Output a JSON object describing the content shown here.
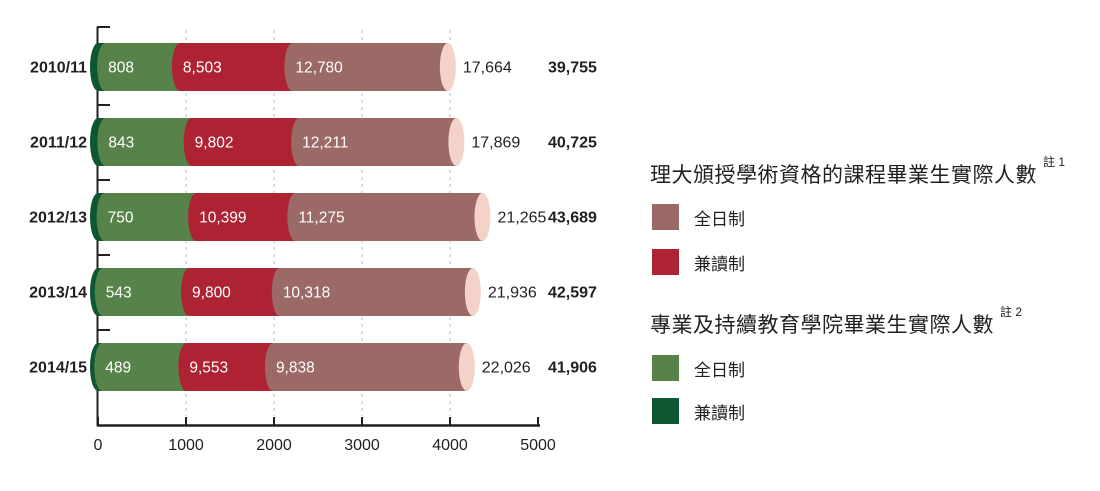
{
  "page": {
    "background": "#ffffff"
  },
  "chart_data": {
    "type": "bar",
    "orientation": "horizontal",
    "stacked": true,
    "title": "",
    "xlabel": "",
    "ylabel": "",
    "categories": [
      "2010/11",
      "2011/12",
      "2012/13",
      "2013/14",
      "2014/15"
    ],
    "series": [
      {
        "name": "專業及持續教育學院畢業生實際人數 兼讀制",
        "color": "#0d5732",
        "values": [
          808,
          843,
          750,
          543,
          489
        ],
        "labels": [
          "808",
          "843",
          "750",
          "543",
          "489"
        ]
      },
      {
        "name": "專業及持續教育學院畢業生實際人數 全日制",
        "color": "#57834a",
        "values": [
          8503,
          9802,
          10399,
          9800,
          9553
        ],
        "labels": [
          "8,503",
          "9,802",
          "10,399",
          "9,800",
          "9,553"
        ]
      },
      {
        "name": "理大頒授學術資格的課程畢業生實際人數 兼讀制",
        "color": "#ae2334",
        "values": [
          12780,
          12211,
          11275,
          10318,
          9838
        ],
        "labels": [
          "12,780",
          "12,211",
          "11,275",
          "10,318",
          "9,838"
        ]
      },
      {
        "name": "理大頒授學術資格的課程畢業生實際人數 全日制",
        "color": "#9b6a66",
        "values": [
          17664,
          17869,
          21265,
          21936,
          22026
        ],
        "labels": [
          "17,664",
          "17,869",
          "21,265",
          "21,936",
          "22,026"
        ]
      }
    ],
    "totals": [
      39755,
      40725,
      43689,
      42597,
      41906
    ],
    "total_labels": [
      "39,755",
      "40,725",
      "43,689",
      "42,597",
      "41,906"
    ],
    "x_axis": {
      "min": 0,
      "max": 5000,
      "tick_labels": [
        "0",
        "1000",
        "2000",
        "3000",
        "4000",
        "5000"
      ],
      "gridline_values": [
        1000,
        2000,
        3000,
        4000
      ],
      "value_scale_divisor": 10
    },
    "grid": true,
    "legend_position": "right",
    "end_cap_color": "#f2d2c9",
    "axis_color": "#231f20",
    "gridline_color": "#c6c6c6",
    "segment_label_color": "#ffffff",
    "value_label_color": "#231f20"
  },
  "legend": {
    "groups": [
      {
        "title": "理大頒授學術資格的課程畢業生實際人數",
        "note": "註 1",
        "items": [
          {
            "label": "全日制",
            "color": "#9b6a66"
          },
          {
            "label": "兼讀制",
            "color": "#ae2334"
          }
        ]
      },
      {
        "title": "專業及持續教育學院畢業生實際人數",
        "note": "註 2",
        "items": [
          {
            "label": "全日制",
            "color": "#57834a"
          },
          {
            "label": "兼讀制",
            "color": "#0d5732"
          }
        ]
      }
    ]
  }
}
